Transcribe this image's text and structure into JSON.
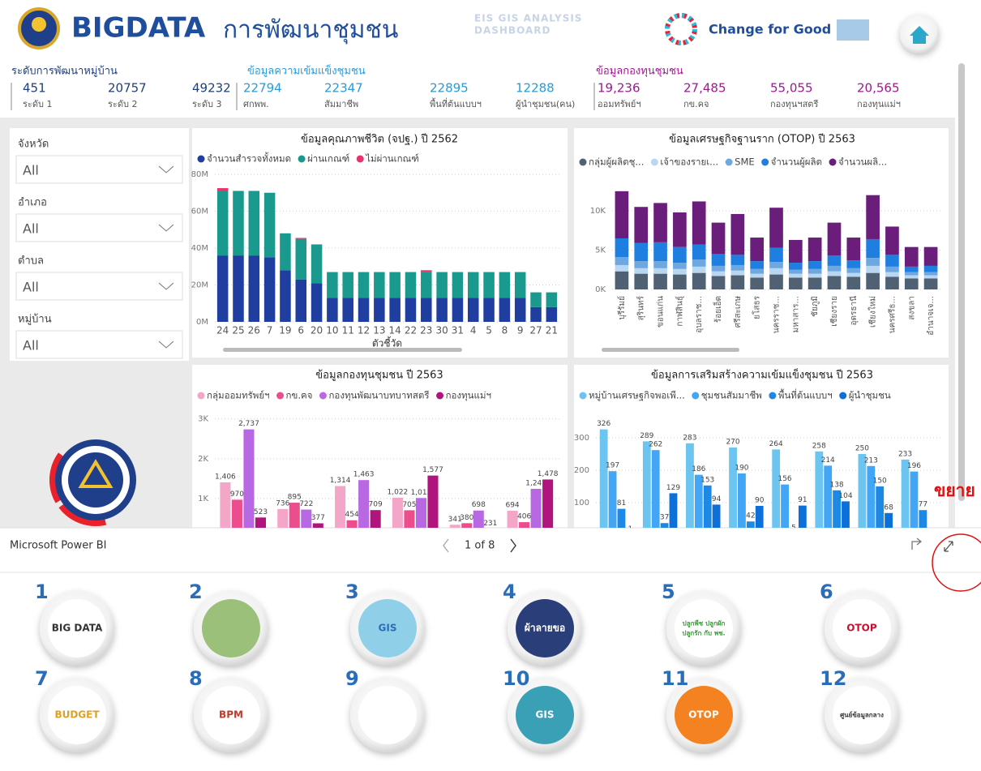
{
  "header": {
    "title": "BIGDATA",
    "subtitle": "การพัฒนาชุมชน",
    "badge": [
      "EIS GIS ANALYSIS",
      "DASHBOARD"
    ],
    "slogan": "Change for Good"
  },
  "kpis": [
    {
      "title": "ระดับการพัฒนาหมู่บ้าน",
      "items": [
        {
          "value": "451",
          "label": "ระดับ 1"
        },
        {
          "value": "20757",
          "label": "ระดับ 2"
        },
        {
          "value": "49232",
          "label": "ระดับ 3"
        }
      ]
    },
    {
      "title": "ข้อมูลความเข้มแข็งชุมชน",
      "items": [
        {
          "value": "22794",
          "label": "ศกพพ."
        },
        {
          "value": "22347",
          "label": "สัมมาชีพ"
        },
        {
          "value": "22895",
          "label": "พื้นที่ต้นแบบฯ"
        },
        {
          "value": "12288",
          "label": "ผู้นำชุมชน(คน)"
        }
      ]
    },
    {
      "title": "ข้อมูลกองทุนชุมชน",
      "items": [
        {
          "value": "19,236",
          "label": "ออมทรัพย์ฯ"
        },
        {
          "value": "27,485",
          "label": "กข.คจ"
        },
        {
          "value": "55,055",
          "label": "กองทุนฯสตรี"
        },
        {
          "value": "20,565",
          "label": "กองทุนแม่ฯ"
        }
      ]
    }
  ],
  "filters": [
    {
      "label": "จังหวัด",
      "value": "All"
    },
    {
      "label": "อำเภอ",
      "value": "All"
    },
    {
      "label": "ตำบล",
      "value": "All"
    },
    {
      "label": "หมู่บ้าน",
      "value": "All"
    }
  ],
  "charts": [
    {
      "type": "bar",
      "stacked": true,
      "title": "ข้อมูลคุณภาพชีวิต (จปฐ.) ปี 2562",
      "xlabel": "ตัวชี้วัด",
      "grid": true,
      "categories": [
        "24",
        "25",
        "26",
        "7",
        "19",
        "6",
        "20",
        "10",
        "11",
        "12",
        "13",
        "14",
        "22",
        "23",
        "30",
        "31",
        "4",
        "5",
        "8",
        "9",
        "27",
        "21"
      ],
      "ylim": [
        0,
        80000000
      ],
      "yticks": [
        {
          "value": 0,
          "label": "0M"
        },
        {
          "value": 20000000,
          "label": "20M"
        },
        {
          "value": 40000000,
          "label": "40M"
        },
        {
          "value": 60000000,
          "label": "60M"
        },
        {
          "value": 80000000,
          "label": "80M"
        }
      ],
      "series": [
        {
          "name": "จำนวนสำรวจทั้งหมด",
          "color": "#1f3ea0",
          "values": [
            36000000,
            36000000,
            36000000,
            35000000,
            28000000,
            23000000,
            21000000,
            13000000,
            13000000,
            13000000,
            13000000,
            13000000,
            13000000,
            13000000,
            13000000,
            13000000,
            13000000,
            13000000,
            13000000,
            13000000,
            8000000,
            8000000
          ]
        },
        {
          "name": "ผ่านเกณฑ์",
          "color": "#1a9a8f",
          "values": [
            35000000,
            35000000,
            35000000,
            35000000,
            20000000,
            22000000,
            21000000,
            14000000,
            14000000,
            14000000,
            14000000,
            14000000,
            14000000,
            14000000,
            14000000,
            14000000,
            14000000,
            14000000,
            14000000,
            14000000,
            8000000,
            8000000
          ]
        },
        {
          "name": "ไม่ผ่านเกณฑ์",
          "color": "#e8336b",
          "values": [
            1500000,
            0,
            0,
            0,
            0,
            500000,
            0,
            0,
            0,
            0,
            0,
            0,
            0,
            1000000,
            0,
            0,
            0,
            0,
            0,
            0,
            0,
            0
          ]
        }
      ]
    },
    {
      "type": "bar",
      "stacked": true,
      "title": "ข้อมูลเศรษฐกิจฐานราก (OTOP) ปี 2563",
      "grid": true,
      "rotate_labels": true,
      "categories": [
        "บุรีรัมย์",
        "สุรินทร์",
        "ขอนแก่น",
        "กาฬสินธุ์",
        "อุบลราช...",
        "ร้อยเอ็ด",
        "ศรีสะเกษ",
        "ยโสธร",
        "นครราช...",
        "มหาสาร...",
        "ชัยภูมิ",
        "เชียงราย",
        "อุดรธานี",
        "เชียงใหม่",
        "นครศรีธ...",
        "สงขลา",
        "อำนาจเจ..."
      ],
      "ylim": [
        0,
        13000
      ],
      "yticks": [
        {
          "value": 0,
          "label": "0K"
        },
        {
          "value": 5000,
          "label": "5K"
        },
        {
          "value": 10000,
          "label": "10K"
        }
      ],
      "series": [
        {
          "name": "กลุ่มผู้ผลิตชุ...",
          "color": "#4f6173",
          "values": [
            2300,
            2000,
            2000,
            1900,
            2100,
            1700,
            1800,
            1500,
            1900,
            1500,
            1500,
            1700,
            1600,
            2100,
            1600,
            1400,
            1400
          ]
        },
        {
          "name": "เจ้าของรายเ...",
          "color": "#b9d7f0",
          "values": [
            800,
            700,
            700,
            700,
            800,
            600,
            600,
            500,
            800,
            500,
            500,
            600,
            500,
            900,
            600,
            400,
            400
          ]
        },
        {
          "name": "SME",
          "color": "#6fa8e0",
          "values": [
            1000,
            900,
            900,
            800,
            900,
            700,
            700,
            600,
            800,
            500,
            600,
            700,
            600,
            1000,
            700,
            400,
            400
          ]
        },
        {
          "name": "จำนวนผู้ผลิต",
          "color": "#1f7fe0",
          "values": [
            2400,
            2300,
            2400,
            2000,
            1900,
            1500,
            1300,
            1000,
            1800,
            900,
            1000,
            1300,
            1000,
            2400,
            1500,
            700,
            800
          ]
        },
        {
          "name": "จำนวนผลิ...",
          "color": "#6b1d7b",
          "values": [
            6000,
            4600,
            5000,
            4400,
            5500,
            4000,
            5200,
            3000,
            5100,
            2900,
            3000,
            4200,
            2900,
            5600,
            3600,
            2500,
            2400
          ]
        }
      ]
    },
    {
      "type": "bar",
      "title": "ข้อมูลกองทุนชุมชน ปี 2563",
      "grid": true,
      "ylim": [
        0,
        3300
      ],
      "yticks": [
        {
          "value": 1000,
          "label": "1K"
        },
        {
          "value": 2000,
          "label": "2K"
        },
        {
          "value": 3000,
          "label": "3K"
        }
      ],
      "series": [
        {
          "name": "กลุ่มออมทรัพย์ฯ",
          "color": "#f4a6c8",
          "values": [
            1406,
            736,
            1314,
            1022,
            341,
            694
          ],
          "value_labels": [
            "1,406",
            "736",
            "1,314",
            "1,022",
            "341",
            "694"
          ]
        },
        {
          "name": "กข.คจ",
          "color": "#ec4d8c",
          "values": [
            970,
            895,
            454,
            705,
            380,
            406
          ],
          "value_labels": [
            "970",
            "895",
            "454",
            "705",
            "380",
            "406"
          ]
        },
        {
          "name": "กองทุนพัฒนาบทบาทสตรี",
          "color": "#b868e3",
          "values": [
            2737,
            722,
            1463,
            1013,
            698,
            1243
          ],
          "value_labels": [
            "2,737",
            "722",
            "1,463",
            "1,013",
            "698",
            "1,243"
          ]
        },
        {
          "name": "กองทุนแม่ฯ",
          "color": "#b0157e",
          "values": [
            523,
            377,
            709,
            1577,
            231,
            1478
          ],
          "value_labels": [
            "523",
            "377",
            "709",
            "1,577",
            "231",
            "1,478"
          ]
        }
      ]
    },
    {
      "type": "bar",
      "title": "ข้อมูลการเสริมสร้างความเข้มแข็งชุมชน ปี 2563",
      "grid": true,
      "ylim": [
        0,
        360
      ],
      "yticks": [
        100,
        200,
        300
      ],
      "series": [
        {
          "name": "หมู่บ้านเศรษฐกิจพอเพี...",
          "color": "#6cc4f0",
          "values": [
            326,
            289,
            283,
            270,
            264,
            258,
            250,
            233
          ]
        },
        {
          "name": "ชุมชนสัมมาชีพ",
          "color": "#42a5f5",
          "values": [
            197,
            262,
            186,
            190,
            156,
            214,
            213,
            196
          ]
        },
        {
          "name": "พื้นที่ต้นแบบฯ",
          "color": "#1e88e5",
          "values": [
            81,
            37,
            153,
            42,
            5,
            138,
            150,
            77
          ]
        },
        {
          "name": "ผู้นำชุมชน",
          "color": "#0d6fd8",
          "values": [
            1,
            129,
            94,
            90,
            91,
            104,
            68,
            null
          ]
        }
      ]
    }
  ],
  "footer": {
    "brand": "Microsoft Power BI",
    "page": "1 of 8",
    "note": "ขยาย"
  },
  "apps": [
    {
      "number": "1",
      "lines": [
        "BIG DATA"
      ]
    },
    {
      "number": "2",
      "lines": []
    },
    {
      "number": "3",
      "lines": [
        "GIS"
      ]
    },
    {
      "number": "4",
      "lines": [
        "ผ้าลายขอ"
      ]
    },
    {
      "number": "5",
      "lines": [
        "ปลูกพืช ปลูกผัก",
        "ปลูกรัก กับ พช."
      ]
    },
    {
      "number": "6",
      "lines": [
        "OTOP"
      ]
    },
    {
      "number": "7",
      "lines": [
        "BUDGET"
      ]
    },
    {
      "number": "8",
      "lines": [
        "BPM"
      ]
    },
    {
      "number": "9",
      "lines": []
    },
    {
      "number": "10",
      "lines": [
        "GIS"
      ]
    },
    {
      "number": "11",
      "lines": [
        "OTOP"
      ]
    },
    {
      "number": "12",
      "lines": [
        "ศูนย์ข้อมูลกลาง"
      ]
    }
  ]
}
